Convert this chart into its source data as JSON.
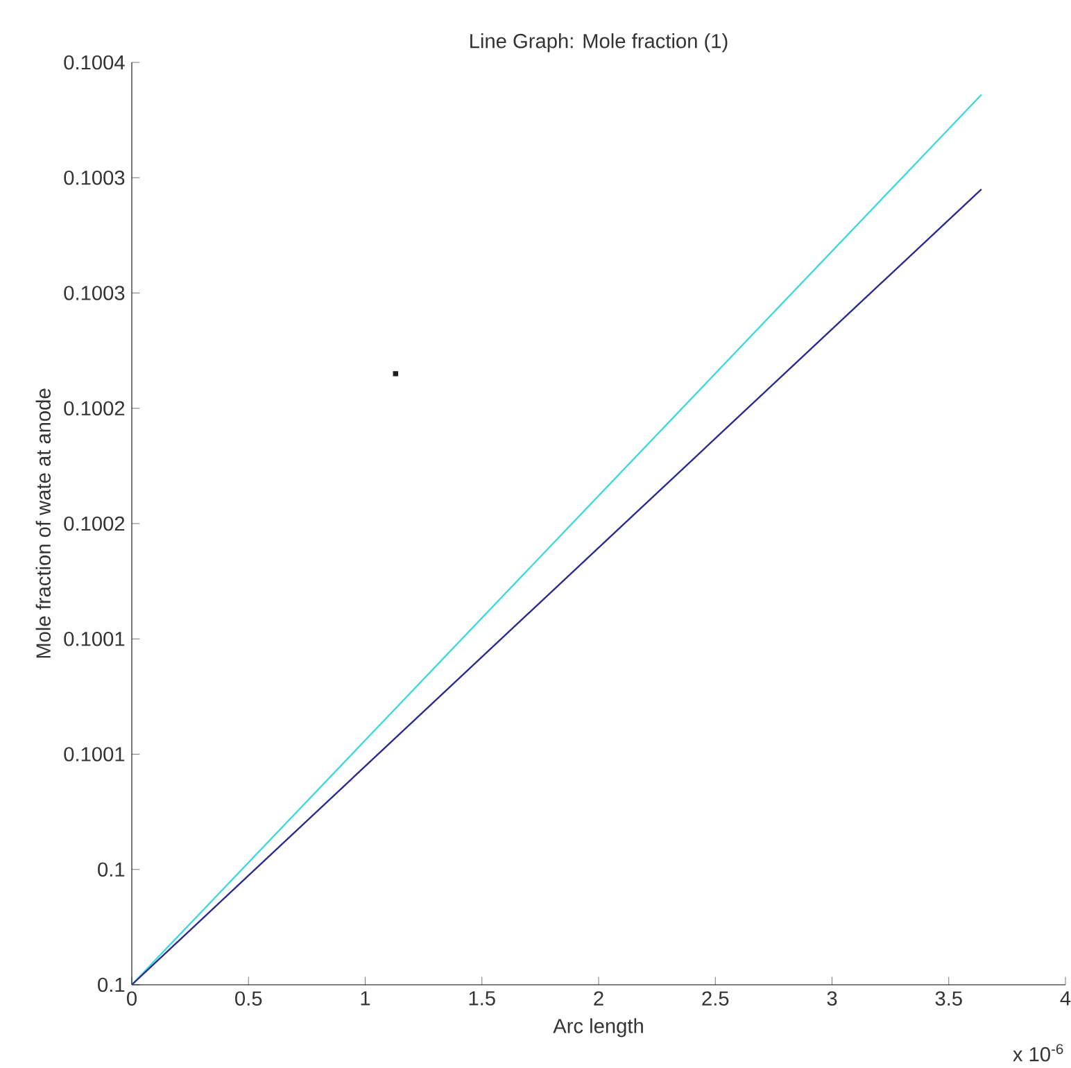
{
  "chart_data": {
    "type": "line",
    "title": "Line Graph: Mole fraction (1)",
    "xlabel": "Arc length",
    "ylabel": "Mole fraction of wate at anode",
    "annotations": [
      "x 10$^{-6}$"
    ],
    "series": [
      {
        "color": "#40d8e0",
        "x": [
          0,
          3.64
        ],
        "values": [
          0.1,
          0.100386
        ]
      },
      {
        "color": "#2a2a8c",
        "x": [
          0,
          3.64
        ],
        "values": [
          0.1,
          0.100345
        ]
      },
      {
        "type": "scatter",
        "color": "#202020",
        "marker": "square",
        "x": [
          1.13
        ],
        "values": [
          0.100265
        ]
      }
    ],
    "xlim": [
      0,
      4
    ],
    "xticks": [
      0,
      0.5,
      1,
      1.5,
      2,
      2.5,
      3,
      3.5,
      4
    ],
    "ylim": [
      0.1,
      0.1004
    ],
    "yticks": [
      {
        "value": 0.1,
        "label": "0.1"
      },
      {
        "value": 0.10005,
        "label": "0.1"
      },
      {
        "value": 0.1001,
        "label": "0.1001"
      },
      {
        "value": 0.10015,
        "label": "0.1001"
      },
      {
        "value": 0.1002,
        "label": "0.1002"
      },
      {
        "value": 0.10025,
        "label": "0.1002"
      },
      {
        "value": 0.1003,
        "label": "0.1003"
      },
      {
        "value": 0.10035,
        "label": "0.1003"
      },
      {
        "value": 0.1004,
        "label": "0.1004"
      }
    ]
  }
}
